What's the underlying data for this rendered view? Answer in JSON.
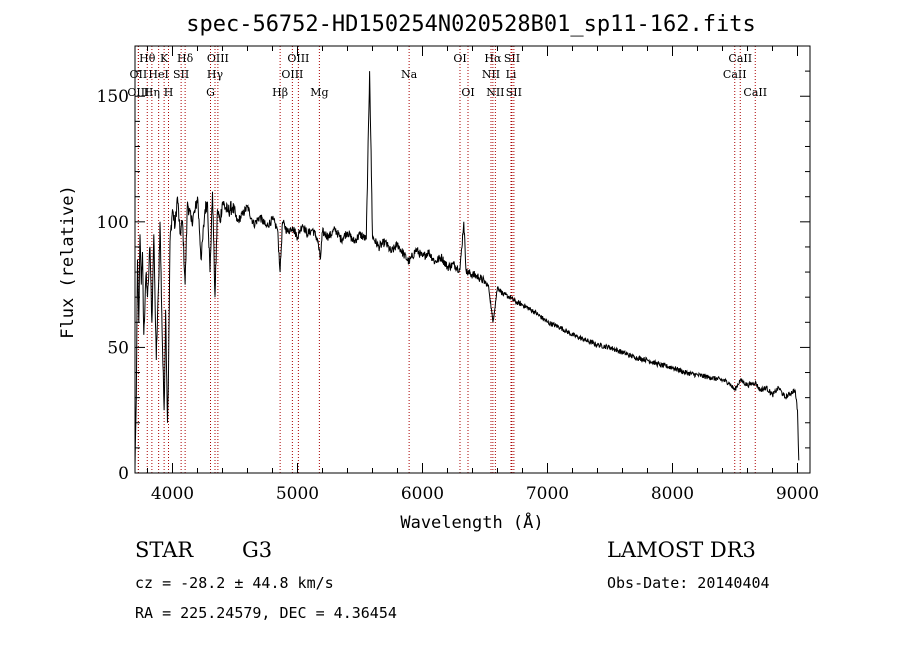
{
  "chart_data": {
    "type": "line",
    "title": "spec-56752-HD150254N020528B01_sp11-162.fits",
    "xlabel": "Wavelength (Å)",
    "ylabel": "Flux (relative)",
    "xlim": [
      3700,
      9100
    ],
    "ylim": [
      0,
      170
    ],
    "xticks": [
      4000,
      5000,
      6000,
      7000,
      8000,
      9000
    ],
    "yticks": [
      0,
      50,
      100,
      150
    ],
    "series": [
      {
        "name": "flux",
        "x": [
          3700,
          3710,
          3720,
          3730,
          3740,
          3750,
          3760,
          3770,
          3790,
          3800,
          3820,
          3835,
          3850,
          3870,
          3889,
          3900,
          3920,
          3933,
          3945,
          3960,
          3968,
          3980,
          4000,
          4020,
          4040,
          4060,
          4080,
          4101,
          4120,
          4150,
          4180,
          4200,
          4230,
          4260,
          4280,
          4300,
          4320,
          4340,
          4360,
          4380,
          4400,
          4440,
          4480,
          4520,
          4560,
          4600,
          4650,
          4700,
          4750,
          4800,
          4840,
          4861,
          4880,
          4920,
          4960,
          5000,
          5040,
          5080,
          5120,
          5160,
          5183,
          5200,
          5250,
          5300,
          5350,
          5400,
          5450,
          5500,
          5550,
          5577,
          5600,
          5650,
          5700,
          5750,
          5800,
          5850,
          5893,
          5950,
          6000,
          6050,
          6100,
          6150,
          6200,
          6250,
          6300,
          6330,
          6350,
          6400,
          6450,
          6500,
          6530,
          6563,
          6600,
          6650,
          6700,
          6750,
          6800,
          6900,
          7000,
          7100,
          7200,
          7300,
          7400,
          7500,
          7600,
          7700,
          7800,
          7900,
          8000,
          8100,
          8200,
          8300,
          8400,
          8450,
          8498,
          8542,
          8600,
          8662,
          8700,
          8750,
          8800,
          8850,
          8900,
          8950,
          8980,
          9000,
          9010
        ],
        "y": [
          2,
          30,
          85,
          60,
          95,
          75,
          88,
          55,
          80,
          70,
          90,
          60,
          95,
          45,
          75,
          100,
          50,
          25,
          65,
          20,
          40,
          92,
          105,
          98,
          110,
          95,
          100,
          75,
          108,
          100,
          104,
          110,
          85,
          105,
          108,
          80,
          112,
          70,
          105,
          100,
          108,
          104,
          106,
          100,
          103,
          106,
          99,
          102,
          98,
          101,
          97,
          80,
          100,
          96,
          98,
          94,
          99,
          95,
          97,
          93,
          85,
          96,
          94,
          97,
          93,
          96,
          92,
          95,
          93,
          160,
          94,
          90,
          92,
          88,
          91,
          87,
          84,
          89,
          86,
          88,
          84,
          86,
          82,
          83,
          81,
          100,
          80,
          79,
          78,
          76,
          74,
          60,
          74,
          71,
          70,
          68,
          67,
          64,
          60,
          58,
          55,
          53,
          51,
          50,
          48,
          46,
          45,
          43,
          42,
          40,
          39,
          38,
          37,
          36,
          33,
          37,
          35,
          36,
          33,
          34,
          31,
          34,
          30,
          32,
          33,
          25,
          5
        ]
      }
    ],
    "line_ids": [
      {
        "label": "Hθ",
        "wave": 3798,
        "row": 1
      },
      {
        "label": "OII",
        "wave": 3727,
        "row": 2
      },
      {
        "label": "OIII",
        "wave": 3727,
        "row": 3
      },
      {
        "label": "HeI",
        "wave": 3889,
        "row": 2
      },
      {
        "label": "Hη",
        "wave": 3835,
        "row": 3
      },
      {
        "label": "K",
        "wave": 3933,
        "row": 1
      },
      {
        "label": "H",
        "wave": 3968,
        "row": 3
      },
      {
        "label": "Hδ",
        "wave": 4101,
        "row": 1
      },
      {
        "label": "SII",
        "wave": 4069,
        "row": 2
      },
      {
        "label": "OIII",
        "wave": 4363,
        "row": 1
      },
      {
        "label": "Hγ",
        "wave": 4340,
        "row": 2
      },
      {
        "label": "G",
        "wave": 4304,
        "row": 3
      },
      {
        "label": "Hβ",
        "wave": 4861,
        "row": 3
      },
      {
        "label": "OIII",
        "wave": 5007,
        "row": 1
      },
      {
        "label": "OIII",
        "wave": 4959,
        "row": 2
      },
      {
        "label": "Mg",
        "wave": 5175,
        "row": 3
      },
      {
        "label": "Na",
        "wave": 5893,
        "row": 2
      },
      {
        "label": "OI",
        "wave": 6300,
        "row": 1
      },
      {
        "label": "OI",
        "wave": 6364,
        "row": 3
      },
      {
        "label": "Hα",
        "wave": 6563,
        "row": 1
      },
      {
        "label": "SII",
        "wave": 6716,
        "row": 1
      },
      {
        "label": "NII",
        "wave": 6548,
        "row": 2
      },
      {
        "label": "Li",
        "wave": 6708,
        "row": 2
      },
      {
        "label": "NII",
        "wave": 6583,
        "row": 3
      },
      {
        "label": "SII",
        "wave": 6731,
        "row": 3
      },
      {
        "label": "CaII",
        "wave": 8542,
        "row": 1
      },
      {
        "label": "CaII",
        "wave": 8498,
        "row": 2
      },
      {
        "label": "CaII",
        "wave": 8662,
        "row": 3
      }
    ]
  },
  "info": {
    "class": "STAR",
    "subclass": "G3",
    "survey": "LAMOST DR3",
    "cz": "cz = -28.2 ± 44.8 km/s",
    "obsdate": "Obs-Date: 20140404",
    "radec": "RA = 225.24579, DEC =   4.36454"
  },
  "colors": {
    "axis": "#000000",
    "spectrum": "#000000",
    "lineid": "#aa0000"
  }
}
